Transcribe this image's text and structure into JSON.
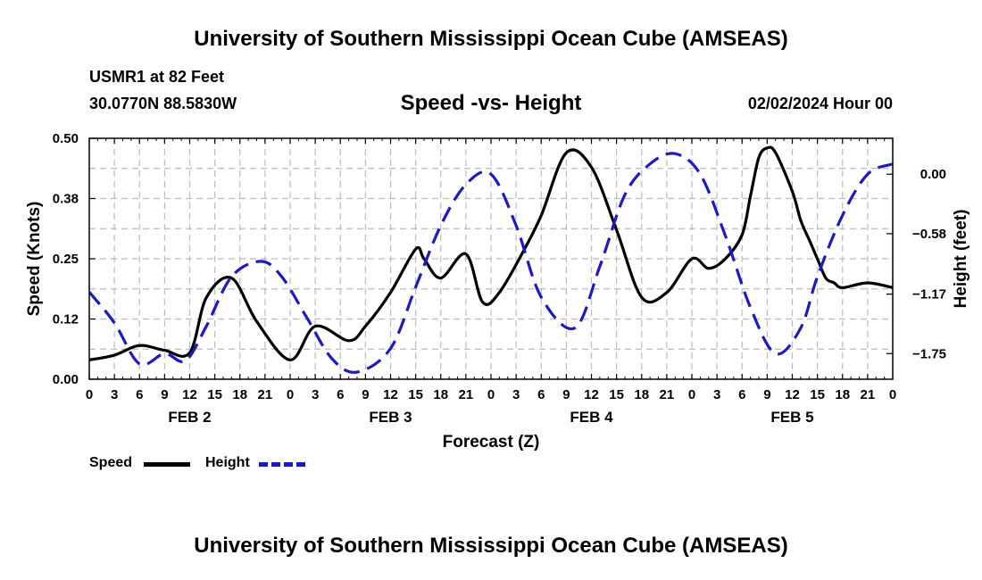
{
  "header": {
    "main_title": "University of Southern Mississippi Ocean Cube (AMSEAS)",
    "station": "USMR1 at 82 Feet",
    "coords": "30.0770N  88.5830W",
    "subtitle": "Speed -vs- Height",
    "date": "02/02/2024 Hour 00"
  },
  "footer": {
    "repeat_title": "University of Southern Mississippi Ocean Cube (AMSEAS)"
  },
  "legend": {
    "speed_label": "Speed",
    "height_label": "Height"
  },
  "colors": {
    "speed": "#000000",
    "height": "#1a1acc",
    "grid": "#bbbbbb"
  },
  "chart_data": {
    "type": "line",
    "title": "Speed -vs- Height",
    "xlabel": "Forecast (Z)",
    "ylabel": "Speed (Knots)",
    "y2label": "Height (feet)",
    "xlim": [
      0,
      96
    ],
    "ylim": [
      0,
      0.5
    ],
    "y2lim": [
      -2.0,
      0.35
    ],
    "x_ticks": [
      0,
      3,
      6,
      9,
      12,
      15,
      18,
      21,
      24,
      27,
      30,
      33,
      36,
      39,
      42,
      45,
      48,
      51,
      54,
      57,
      60,
      63,
      66,
      69,
      72,
      75,
      78,
      81,
      84,
      87,
      90,
      93,
      96
    ],
    "x_tick_labels": [
      "0",
      "3",
      "6",
      "9",
      "12",
      "15",
      "18",
      "21",
      "0",
      "3",
      "6",
      "9",
      "12",
      "15",
      "18",
      "21",
      "0",
      "3",
      "6",
      "9",
      "12",
      "15",
      "18",
      "21",
      "0",
      "3",
      "6",
      "9",
      "12",
      "15",
      "18",
      "21",
      "0"
    ],
    "day_labels": [
      {
        "label": "FEB 2",
        "x": 12
      },
      {
        "label": "FEB 3",
        "x": 36
      },
      {
        "label": "FEB 4",
        "x": 60
      },
      {
        "label": "FEB 5",
        "x": 84
      }
    ],
    "y_ticks": [
      0,
      0.125,
      0.25,
      0.375,
      0.5
    ],
    "y_tick_labels": [
      "0.00",
      "0.12",
      "0.25",
      "0.38",
      "0.50"
    ],
    "y2_ticks": [
      0,
      -0.58,
      -1.17,
      -1.75
    ],
    "y2_tick_labels": [
      "0.00",
      "−0.58",
      "−1.17",
      "−1.75"
    ],
    "grid": true,
    "series": [
      {
        "name": "Speed",
        "axis": "left",
        "style": "solid",
        "x": [
          0,
          3,
          6,
          9,
          12,
          14,
          17,
          20,
          24,
          27,
          31,
          33,
          36,
          39,
          40,
          42,
          45,
          47,
          49,
          52,
          54,
          57,
          60,
          63,
          66,
          69,
          72,
          74,
          76,
          78,
          79,
          80,
          81,
          82,
          84,
          85,
          86,
          87,
          88,
          89,
          90,
          93,
          96
        ],
        "y": [
          0.04,
          0.05,
          0.07,
          0.06,
          0.055,
          0.17,
          0.21,
          0.12,
          0.04,
          0.11,
          0.08,
          0.11,
          0.18,
          0.27,
          0.25,
          0.21,
          0.26,
          0.16,
          0.18,
          0.27,
          0.34,
          0.47,
          0.44,
          0.31,
          0.17,
          0.18,
          0.25,
          0.23,
          0.25,
          0.3,
          0.38,
          0.46,
          0.48,
          0.47,
          0.39,
          0.33,
          0.29,
          0.25,
          0.21,
          0.2,
          0.19,
          0.2,
          0.19
        ]
      },
      {
        "name": "Height",
        "axis": "right",
        "style": "dashed",
        "x": [
          0,
          3,
          6,
          9,
          11.5,
          14,
          17,
          20.5,
          23,
          26,
          29,
          32,
          36,
          39,
          42,
          45,
          48,
          51,
          54,
          58,
          61,
          64,
          67,
          70,
          73,
          76,
          79,
          82,
          85,
          87,
          90,
          93,
          96
        ],
        "y": [
          -1.15,
          -1.45,
          -1.85,
          -1.75,
          -1.82,
          -1.48,
          -1.0,
          -0.85,
          -1.0,
          -1.4,
          -1.8,
          -1.93,
          -1.7,
          -1.1,
          -0.5,
          -0.1,
          0.0,
          -0.5,
          -1.2,
          -1.5,
          -0.9,
          -0.2,
          0.1,
          0.2,
          0.0,
          -0.6,
          -1.3,
          -1.75,
          -1.5,
          -1.0,
          -0.4,
          0.0,
          0.1
        ]
      }
    ]
  }
}
